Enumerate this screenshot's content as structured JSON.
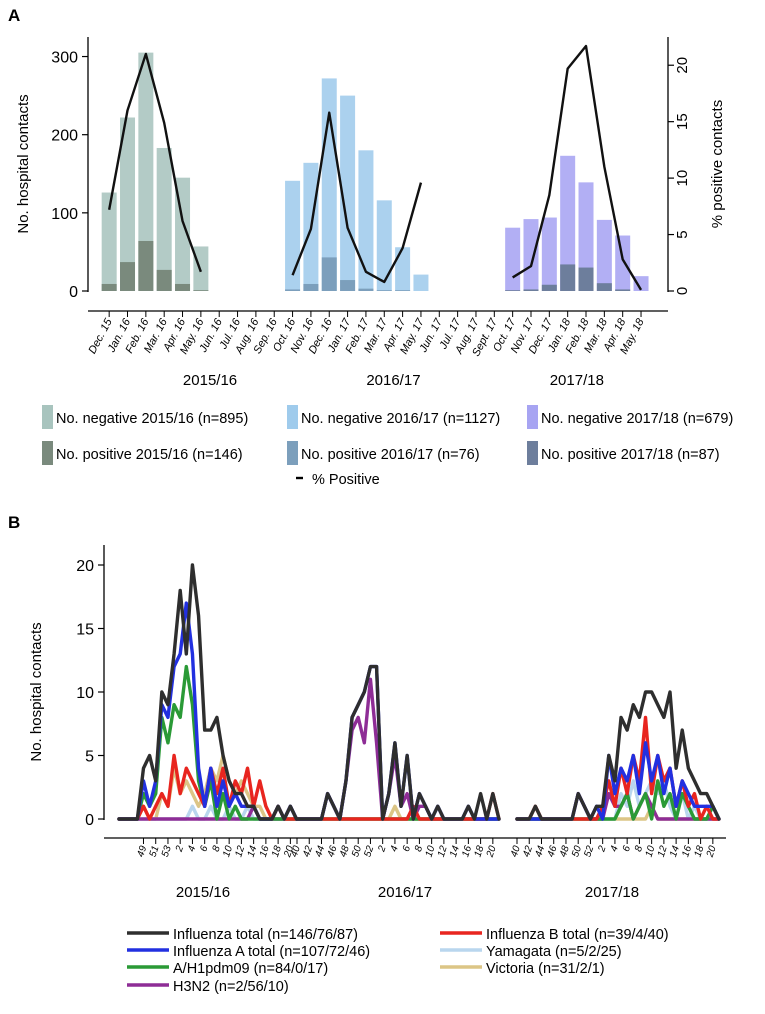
{
  "chart_data": [
    {
      "panel": "A",
      "type": "bar",
      "ylabel": "No. hospital contacts",
      "y2label": "% positive contacts",
      "ylim": [
        0,
        325
      ],
      "y2lim": [
        0,
        22.5
      ],
      "yticks": [
        0,
        100,
        200,
        300
      ],
      "y2ticks": [
        0,
        5,
        10,
        15,
        20
      ],
      "months": [
        "Dec. 15",
        "Jan. 16",
        "Feb. 16",
        "Mar. 16",
        "Apr. 16",
        "May. 16",
        "Jun. 16",
        "Jul. 16",
        "Aug. 16",
        "Sep. 16",
        "Oct. 16",
        "Nov. 16",
        "Dec. 16",
        "Jan. 17",
        "Feb. 17",
        "Mar. 17",
        "Apr. 17",
        "May. 17",
        "Jun. 17",
        "Jul. 17",
        "Aug. 17",
        "Sept. 17",
        "Oct. 17",
        "Nov. 17",
        "Dec. 17",
        "Jan. 18",
        "Feb. 18",
        "Mar. 18",
        "Apr. 18",
        "May. 18"
      ],
      "season_labels": [
        {
          "text": "2015/16",
          "month": 5.5
        },
        {
          "text": "2016/17",
          "month": 15.5
        },
        {
          "text": "2017/18",
          "month": 25.5
        }
      ],
      "series": [
        {
          "name": "No. negative 2015/16 (n=895)",
          "kind": "neg",
          "color": "#a8c4be",
          "start": 0,
          "values": [
            126,
            222,
            305,
            183,
            145,
            57
          ]
        },
        {
          "name": "No. positive 2015/16 (n=146)",
          "kind": "pos",
          "color": "#7a8a7d",
          "start": 0,
          "values": [
            9,
            37,
            64,
            27,
            9,
            1
          ]
        },
        {
          "name": "No. negative 2016/17 (n=1127)",
          "kind": "neg",
          "color": "#9fcbec",
          "start": 10,
          "values": [
            141,
            164,
            272,
            250,
            180,
            116,
            56,
            21
          ]
        },
        {
          "name": "No. positive 2016/17 (n=76)",
          "kind": "pos",
          "color": "#7c9fbc",
          "start": 10,
          "values": [
            2,
            9,
            43,
            14,
            3,
            1,
            1,
            0
          ]
        },
        {
          "name": "No. negative 2017/18 (n=679)",
          "kind": "neg",
          "color": "#a7a4f2",
          "start": 22,
          "values": [
            81,
            92,
            94,
            173,
            139,
            91,
            71,
            19
          ]
        },
        {
          "name": "No. positive 2017/18 (n=87)",
          "kind": "pos",
          "color": "#6d7e9c",
          "start": 22,
          "values": [
            1,
            2,
            8,
            34,
            30,
            10,
            2,
            0
          ]
        }
      ],
      "pct_positive": [
        {
          "start": 0,
          "values": [
            7.2,
            16.0,
            21.0,
            14.9,
            6.2,
            1.7
          ]
        },
        {
          "start": 10,
          "values": [
            1.4,
            5.5,
            15.8,
            5.6,
            1.7,
            0.8,
            3.8,
            9.6
          ]
        },
        {
          "start": 22,
          "values": [
            1.2,
            2.2,
            8.5,
            19.7,
            21.7,
            11.0,
            2.8,
            0.1
          ]
        }
      ],
      "pct_legend": "% Positive"
    },
    {
      "panel": "B",
      "type": "line",
      "ylabel": "No. hospital contacts",
      "ylim": [
        0,
        22
      ],
      "yticks": [
        0,
        5,
        10,
        15,
        20
      ],
      "seasons": [
        {
          "label": "2015/16",
          "weeks": [
            "49",
            "51",
            "53",
            "2",
            "4",
            "6",
            "8",
            "10",
            "12",
            "14",
            "16",
            "18",
            "20"
          ]
        },
        {
          "label": "2016/17",
          "weeks": [
            "40",
            "42",
            "44",
            "46",
            "48",
            "50",
            "52",
            "2",
            "4",
            "6",
            "8",
            "10",
            "12",
            "14",
            "16",
            "18",
            "20"
          ]
        },
        {
          "label": "2017/18",
          "weeks": [
            "40",
            "42",
            "44",
            "46",
            "48",
            "50",
            "52",
            "2",
            "4",
            "6",
            "8",
            "10",
            "12",
            "14",
            "16",
            "18",
            "20"
          ]
        }
      ],
      "series": [
        {
          "name": "Victoria (n=31/2/1)",
          "color": "#dcc586",
          "values": [
            [
              0,
              0,
              0,
              0,
              1,
              0,
              0,
              2,
              1,
              4,
              2,
              3,
              2,
              1,
              2,
              4,
              3,
              5,
              3,
              2,
              3,
              2,
              1,
              1,
              0,
              0,
              1,
              0,
              0,
              0
            ],
            [
              0,
              0,
              0,
              0,
              0,
              0,
              0,
              0,
              0,
              0,
              0,
              0,
              0,
              0,
              0,
              0,
              1,
              0,
              0,
              0,
              0,
              0,
              0,
              0,
              0,
              0,
              0,
              0,
              0,
              0,
              0,
              0,
              0,
              0
            ],
            [
              0,
              0,
              0,
              0,
              0,
              0,
              0,
              0,
              0,
              0,
              0,
              0,
              0,
              0,
              0,
              0,
              0,
              0,
              0,
              0,
              0,
              0,
              1,
              0,
              0,
              0,
              0,
              0,
              0,
              0,
              0,
              0,
              0,
              0
            ]
          ]
        },
        {
          "name": "Yamagata (n=5/2/25)",
          "color": "#b9d6ee",
          "values": [
            [
              0,
              0,
              0,
              0,
              0,
              0,
              0,
              0,
              0,
              0,
              0,
              0,
              1,
              0,
              0,
              1,
              0,
              0,
              1,
              0,
              0,
              1,
              0,
              0,
              0,
              0,
              0,
              0,
              0,
              0
            ],
            [
              0,
              0,
              0,
              0,
              0,
              0,
              0,
              0,
              0,
              0,
              0,
              0,
              0,
              0,
              0,
              0,
              0,
              0,
              0,
              1,
              0,
              0,
              0,
              0,
              0,
              0,
              0,
              0,
              0,
              0,
              0,
              0,
              0,
              0
            ],
            [
              0,
              0,
              0,
              0,
              0,
              0,
              0,
              0,
              0,
              0,
              0,
              0,
              0,
              0,
              0,
              0,
              0,
              2,
              1,
              3,
              1,
              2,
              3,
              2,
              3,
              1,
              0,
              2,
              0,
              1,
              0,
              0,
              0,
              0
            ]
          ]
        },
        {
          "name": "H3N2 (n=2/56/10)",
          "color": "#8e2d96",
          "values": [
            [
              0,
              0,
              0,
              0,
              0,
              0,
              0,
              0,
              0,
              0,
              0,
              0,
              0,
              0,
              0,
              0,
              0,
              0,
              0,
              0,
              0,
              0,
              1,
              0,
              0,
              0,
              0,
              0,
              1,
              0
            ],
            [
              0,
              0,
              0,
              0,
              0,
              2,
              1,
              0,
              3,
              7,
              8,
              6,
              11,
              6,
              0,
              2,
              5,
              1,
              2,
              0,
              1,
              1,
              0,
              0,
              0,
              0,
              0,
              0,
              0,
              0,
              0,
              0,
              0,
              0
            ],
            [
              0,
              0,
              0,
              0,
              0,
              0,
              0,
              0,
              0,
              0,
              2,
              1,
              0,
              0,
              0,
              2,
              1,
              1,
              2,
              0,
              1,
              2,
              1,
              0,
              0,
              0,
              0,
              0,
              0,
              0,
              0,
              0,
              0,
              0
            ]
          ]
        },
        {
          "name": "A/H1pdm09 (n=84/0/17)",
          "color": "#2a9a36",
          "values": [
            [
              0,
              0,
              0,
              0,
              2,
              1,
              2,
              8,
              6,
              9,
              8,
              12,
              9,
              3,
              1,
              3,
              0,
              2,
              0,
              1,
              0,
              0,
              0,
              0,
              0,
              0,
              0,
              0,
              0,
              0
            ],
            [
              0,
              0,
              0,
              0,
              0,
              0,
              0,
              0,
              0,
              0,
              0,
              0,
              0,
              0,
              0,
              0,
              0,
              0,
              0,
              0,
              0,
              0,
              0,
              0,
              0,
              0,
              0,
              0,
              0,
              0,
              0,
              0,
              0,
              0
            ],
            [
              0,
              0,
              0,
              0,
              0,
              0,
              0,
              0,
              0,
              0,
              0,
              0,
              0,
              0,
              0,
              0,
              0,
              1,
              2,
              0,
              1,
              2,
              0,
              3,
              1,
              2,
              0,
              2,
              1,
              0,
              0,
              0,
              1,
              0
            ]
          ]
        },
        {
          "name": "Influenza B total (n=39/4/40)",
          "color": "#e8251f",
          "values": [
            [
              0,
              0,
              0,
              0,
              1,
              0,
              1,
              2,
              1,
              5,
              2,
              4,
              3,
              2,
              1,
              4,
              2,
              4,
              1,
              3,
              2,
              4,
              1,
              3,
              1,
              0,
              1,
              0,
              0,
              0
            ],
            [
              0,
              0,
              0,
              0,
              0,
              0,
              0,
              0,
              0,
              0,
              0,
              0,
              0,
              0,
              0,
              0,
              0,
              0,
              0,
              1,
              0,
              0,
              0,
              0,
              0,
              0,
              0,
              0,
              0,
              0,
              0,
              0,
              2,
              0
            ],
            [
              0,
              0,
              0,
              1,
              0,
              0,
              0,
              0,
              0,
              0,
              0,
              0,
              0,
              0,
              1,
              3,
              1,
              4,
              2,
              5,
              3,
              8,
              2,
              5,
              3,
              4,
              1,
              3,
              1,
              2,
              0,
              1,
              0,
              0
            ]
          ]
        },
        {
          "name": "Influenza A total (n=107/72/46)",
          "color": "#2230e0",
          "values": [
            [
              0,
              0,
              0,
              0,
              3,
              1,
              3,
              9,
              8,
              12,
              13,
              17,
              13,
              4,
              1,
              4,
              1,
              3,
              1,
              2,
              1,
              1,
              1,
              0,
              0,
              0,
              1,
              0,
              1,
              0
            ],
            [
              0,
              0,
              0,
              0,
              0,
              2,
              1,
              0,
              3,
              8,
              9,
              10,
              12,
              12,
              0,
              2,
              6,
              1,
              5,
              0,
              2,
              1,
              0,
              1,
              0,
              0,
              0,
              0,
              1,
              0,
              0,
              0,
              0,
              0
            ],
            [
              0,
              0,
              0,
              0,
              0,
              0,
              0,
              0,
              0,
              0,
              2,
              1,
              0,
              1,
              0,
              5,
              2,
              4,
              3,
              5,
              2,
              6,
              3,
              5,
              2,
              4,
              1,
              3,
              2,
              1,
              1,
              1,
              1,
              0
            ]
          ]
        },
        {
          "name": "Influenza total (n=146/76/87)",
          "color": "#2e2e2e",
          "values": [
            [
              0,
              0,
              0,
              0,
              4,
              5,
              3,
              10,
              9,
              13,
              18,
              13,
              20,
              16,
              7,
              7,
              8,
              5,
              3,
              2,
              2,
              1,
              1,
              0,
              0,
              0,
              1,
              0,
              1,
              0
            ],
            [
              0,
              0,
              0,
              0,
              0,
              2,
              1,
              0,
              3,
              8,
              9,
              10,
              12,
              12,
              0,
              2,
              6,
              1,
              5,
              0,
              2,
              1,
              0,
              1,
              0,
              0,
              0,
              0,
              1,
              0,
              2,
              0,
              2,
              0
            ],
            [
              0,
              0,
              0,
              1,
              0,
              0,
              0,
              0,
              0,
              0,
              2,
              1,
              0,
              1,
              1,
              5,
              3,
              8,
              7,
              9,
              8,
              10,
              10,
              9,
              8,
              10,
              4,
              7,
              4,
              3,
              2,
              2,
              1,
              0
            ]
          ]
        }
      ]
    }
  ],
  "panel_labels": {
    "a": "A",
    "b": "B"
  },
  "legend_a": {
    "entries": [
      {
        "label": "No. negative 2015/16 (n=895)",
        "color": "#a8c4be"
      },
      {
        "label": "No. negative 2016/17 (n=1127)",
        "color": "#9fcbec"
      },
      {
        "label": "No. negative 2017/18 (n=679)",
        "color": "#a7a4f2"
      },
      {
        "label": "No. positive 2015/16 (n=146)",
        "color": "#7a8a7d"
      },
      {
        "label": "No. positive 2016/17 (n=76)",
        "color": "#7c9fbc"
      },
      {
        "label": "No. positive 2017/18 (n=87)",
        "color": "#6d7e9c"
      }
    ],
    "line_label": "% Positive"
  },
  "legend_b": {
    "entries": [
      {
        "label": "Influenza total (n=146/76/87)",
        "color": "#2e2e2e"
      },
      {
        "label": "Influenza B total (n=39/4/40)",
        "color": "#e8251f"
      },
      {
        "label": "Influenza A total (n=107/72/46)",
        "color": "#2230e0"
      },
      {
        "label": "Yamagata (n=5/2/25)",
        "color": "#b9d6ee"
      },
      {
        "label": "A/H1pdm09 (n=84/0/17)",
        "color": "#2a9a36"
      },
      {
        "label": "Victoria (n=31/2/1)",
        "color": "#dcc586"
      },
      {
        "label": "H3N2 (n=2/56/10)",
        "color": "#8e2d96"
      }
    ]
  }
}
